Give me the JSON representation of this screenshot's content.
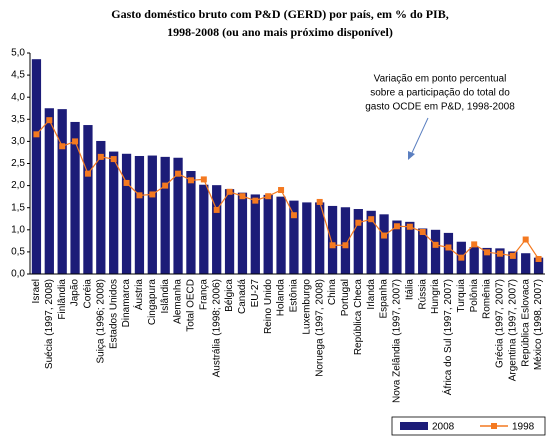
{
  "chart_data": {
    "type": "bar-line",
    "title": [
      "Gasto doméstico bruto com P&D (GERD) por país, em % do PIB,",
      "1998-2008 (ou ano mais próximo disponível)"
    ],
    "annotation": [
      "Variação em ponto percentual",
      "sobre a participação do total do",
      "gasto OCDE em P&D, 1998-2008"
    ],
    "categories": [
      "Israel",
      "Suécia (1997, 2008)",
      "Finlândia",
      "Japão",
      "Coréia",
      "Suiça (1996; 2008)",
      "Estados Unidos",
      "Dinamarca",
      "Áustria",
      "Cingapura",
      "Islândia",
      "Alemanha",
      "Total OECD",
      "França",
      "Austrália (1998; 2006)",
      "Bélgica",
      "Canadá",
      "EU-27",
      "Reino Unido",
      "Holanda",
      "Estônia",
      "Luxemburgo",
      "Noruega (1997, 2008)",
      "China",
      "Portugal",
      "República Checa",
      "Irlanda",
      "Espanha",
      "Nova Zelândia (1997, 2007)",
      "Itália",
      "Rússia",
      "Hungria",
      "África do Sul (1997, 2007)",
      "Turquia",
      "Polônia",
      "Romênia",
      "Grécia (1997, 2007)",
      "Argentina (1997, 2007)",
      "República Eslovaca",
      "México (1998, 2007)"
    ],
    "series": [
      {
        "name": "2008",
        "kind": "bar",
        "color": "#1c1c78",
        "values": [
          4.86,
          3.75,
          3.73,
          3.44,
          3.37,
          3.01,
          2.77,
          2.72,
          2.67,
          2.68,
          2.65,
          2.63,
          2.33,
          2.02,
          2.01,
          1.92,
          1.84,
          1.8,
          1.79,
          1.75,
          1.66,
          1.62,
          1.62,
          1.54,
          1.51,
          1.47,
          1.43,
          1.35,
          1.21,
          1.18,
          1.03,
          1.0,
          0.93,
          0.73,
          0.61,
          0.59,
          0.58,
          0.51,
          0.47,
          0.37
        ]
      },
      {
        "name": "1998",
        "kind": "line",
        "color": "#f47920",
        "values": [
          3.16,
          3.48,
          2.89,
          3.0,
          2.27,
          2.65,
          2.6,
          2.06,
          1.78,
          1.8,
          2.0,
          2.27,
          2.12,
          2.14,
          1.45,
          1.86,
          1.76,
          1.66,
          1.76,
          1.9,
          1.33,
          null,
          1.63,
          0.65,
          0.65,
          1.16,
          1.24,
          0.87,
          1.08,
          1.07,
          0.95,
          0.66,
          0.6,
          0.37,
          0.67,
          0.49,
          0.46,
          0.41,
          0.78,
          0.34
        ]
      }
    ],
    "ylim": [
      0,
      5
    ],
    "yticks": [
      {
        "value": 0,
        "label": "0,0"
      },
      {
        "value": 0.5,
        "label": "0,5"
      },
      {
        "value": 1,
        "label": "1,0"
      },
      {
        "value": 1.5,
        "label": "1,5"
      },
      {
        "value": 2,
        "label": "2,0"
      },
      {
        "value": 2.5,
        "label": "2,5"
      },
      {
        "value": 3,
        "label": "3,0"
      },
      {
        "value": 3.5,
        "label": "3,5"
      },
      {
        "value": 4,
        "label": "4,0"
      },
      {
        "value": 4.5,
        "label": "4,5"
      },
      {
        "value": 5,
        "label": "5,0"
      }
    ],
    "grid": false
  }
}
